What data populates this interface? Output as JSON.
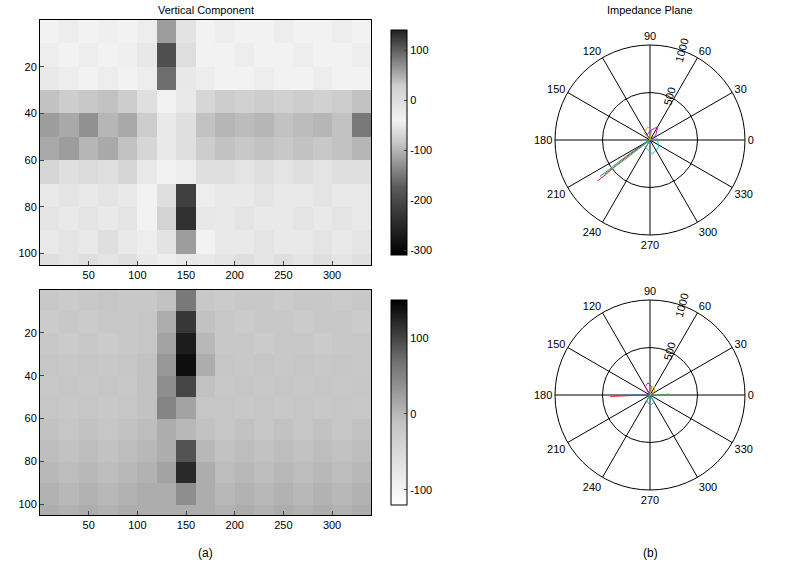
{
  "chart_data": [
    {
      "type": "heatmap",
      "title": "Vertical Component",
      "x": [
        10,
        30,
        50,
        70,
        90,
        110,
        130,
        150,
        170,
        190,
        210,
        230,
        250,
        270,
        290,
        310,
        330
      ],
      "y": [
        5,
        15,
        25,
        35,
        45,
        55,
        65,
        75,
        85,
        95,
        105
      ],
      "z": [
        [
          -40,
          -45,
          -40,
          -35,
          -40,
          -30,
          60,
          -10,
          -40,
          -45,
          -40,
          -40,
          -45,
          -40,
          -40,
          -45,
          -40
        ],
        [
          -45,
          -40,
          -45,
          -40,
          -35,
          -20,
          110,
          0,
          -40,
          -40,
          -45,
          -40,
          -40,
          -45,
          -40,
          -40,
          -45
        ],
        [
          -50,
          -45,
          -40,
          -45,
          -40,
          -30,
          90,
          -20,
          -45,
          -40,
          -40,
          -45,
          -40,
          -40,
          -45,
          -40,
          -40
        ],
        [
          -90,
          -80,
          -85,
          -90,
          -80,
          -60,
          -40,
          -50,
          -70,
          -80,
          -75,
          -80,
          -75,
          -80,
          -75,
          -80,
          -90
        ],
        [
          -120,
          -110,
          -130,
          -100,
          -110,
          -80,
          -50,
          -60,
          -90,
          -100,
          -95,
          -100,
          -90,
          -95,
          -100,
          -90,
          -150
        ],
        [
          -110,
          -120,
          -100,
          -110,
          -90,
          -70,
          -50,
          -60,
          -80,
          -90,
          -85,
          -90,
          -85,
          -90,
          -85,
          -90,
          -100
        ],
        [
          -70,
          -60,
          -65,
          -60,
          -70,
          -50,
          -40,
          -30,
          -60,
          -60,
          -55,
          -60,
          -55,
          -60,
          -55,
          -60,
          -60
        ],
        [
          -50,
          -55,
          -50,
          -55,
          -50,
          -40,
          0,
          120,
          -30,
          -50,
          -50,
          -55,
          -50,
          -50,
          -55,
          -50,
          -50
        ],
        [
          -55,
          -50,
          -55,
          -50,
          -55,
          -40,
          20,
          130,
          -20,
          -50,
          -55,
          -50,
          -50,
          -55,
          -50,
          -55,
          -50
        ],
        [
          -50,
          -55,
          -50,
          -60,
          -50,
          -45,
          -10,
          60,
          -40,
          -50,
          -50,
          -55,
          -50,
          -50,
          -55,
          -50,
          -55
        ],
        [
          -60,
          -55,
          -60,
          -55,
          -60,
          -50,
          -30,
          -20,
          -50,
          -55,
          -60,
          -55,
          -60,
          -55,
          -60,
          -55,
          -60
        ]
      ],
      "xlim": [
        0,
        340
      ],
      "ylim": [
        105,
        0
      ],
      "xticks": [
        50,
        100,
        150,
        200,
        250,
        300
      ],
      "yticks": [
        20,
        40,
        60,
        80,
        100
      ],
      "colorbar_range": [
        -310,
        140
      ],
      "colorbar_ticks": [
        -300,
        -200,
        -100,
        0,
        100
      ]
    },
    {
      "type": "polar",
      "title": "Impedance Plane",
      "rlim": [
        0,
        1000
      ],
      "rticks": [
        500,
        1000
      ],
      "theta_ticks": [
        0,
        30,
        60,
        90,
        120,
        150,
        180,
        210,
        240,
        270,
        300,
        330
      ],
      "series": [
        {
          "color": "#e41a1c",
          "r": [
            0,
            150,
            300,
            450,
            600,
            700
          ],
          "theta": [
            215,
            215,
            216,
            217,
            218,
            218
          ]
        },
        {
          "color": "#377eb8",
          "r": [
            0,
            120,
            250,
            400,
            550,
            650
          ],
          "theta": [
            212,
            213,
            214,
            215,
            216,
            216
          ]
        },
        {
          "color": "#4daf4a",
          "r": [
            0,
            100,
            200,
            350,
            500,
            600
          ],
          "theta": [
            220,
            219,
            218,
            218,
            217,
            217
          ]
        },
        {
          "color": "#c51bc5",
          "r": [
            0,
            80,
            160,
            100,
            60,
            0
          ],
          "theta": [
            30,
            40,
            60,
            90,
            120,
            150
          ]
        },
        {
          "color": "#17becf",
          "r": [
            0,
            90,
            150,
            120,
            80,
            0
          ],
          "theta": [
            200,
            240,
            280,
            320,
            10,
            60
          ]
        },
        {
          "color": "#bcbd22",
          "r": [
            0,
            100,
            140,
            100,
            0
          ],
          "theta": [
            50,
            80,
            100,
            130,
            160
          ]
        }
      ]
    },
    {
      "type": "heatmap",
      "x": [
        10,
        30,
        50,
        70,
        90,
        110,
        130,
        150,
        170,
        190,
        210,
        230,
        250,
        270,
        290,
        310,
        330
      ],
      "y": [
        5,
        15,
        25,
        35,
        45,
        55,
        65,
        75,
        85,
        95,
        105
      ],
      "z": [
        [
          -20,
          -25,
          -20,
          -15,
          -20,
          -20,
          -10,
          60,
          -20,
          -25,
          -20,
          -20,
          -25,
          -20,
          -20,
          -25,
          -20
        ],
        [
          -25,
          -20,
          -25,
          -20,
          -20,
          -15,
          10,
          110,
          -10,
          -20,
          -25,
          -20,
          -20,
          -25,
          -20,
          -20,
          -25
        ],
        [
          -20,
          -25,
          -20,
          -25,
          -20,
          -15,
          20,
          130,
          0,
          -20,
          -20,
          -25,
          -20,
          -20,
          -25,
          -20,
          -20
        ],
        [
          -15,
          -20,
          -15,
          -20,
          -15,
          -10,
          30,
          140,
          10,
          -15,
          -20,
          -15,
          -20,
          -15,
          -20,
          -15,
          -20
        ],
        [
          -20,
          -15,
          -20,
          -15,
          -20,
          -10,
          40,
          100,
          -10,
          -20,
          -15,
          -20,
          -15,
          -20,
          -15,
          -20,
          -15
        ],
        [
          -15,
          -20,
          -15,
          -20,
          -15,
          -10,
          50,
          20,
          -15,
          -15,
          -20,
          -15,
          -20,
          -15,
          -20,
          -15,
          -20
        ],
        [
          -10,
          -15,
          -10,
          -15,
          -10,
          -5,
          10,
          0,
          -10,
          -15,
          -10,
          -15,
          -10,
          -15,
          -10,
          -15,
          -10
        ],
        [
          -5,
          -10,
          -5,
          -10,
          -5,
          0,
          10,
          90,
          0,
          -10,
          -5,
          -10,
          -5,
          -10,
          -5,
          -10,
          -5
        ],
        [
          0,
          -5,
          0,
          -5,
          0,
          5,
          20,
          120,
          10,
          -5,
          0,
          -5,
          0,
          -5,
          0,
          -5,
          0
        ],
        [
          5,
          0,
          5,
          0,
          5,
          10,
          10,
          40,
          10,
          0,
          5,
          0,
          5,
          0,
          5,
          0,
          5
        ],
        [
          10,
          5,
          10,
          5,
          10,
          10,
          10,
          10,
          10,
          5,
          10,
          5,
          10,
          5,
          10,
          5,
          10
        ]
      ],
      "xlim": [
        0,
        340
      ],
      "ylim": [
        105,
        0
      ],
      "xticks": [
        50,
        100,
        150,
        200,
        250,
        300
      ],
      "yticks": [
        20,
        40,
        60,
        80,
        100
      ],
      "colorbar_range": [
        -120,
        150
      ],
      "colorbar_ticks": [
        -100,
        0,
        100
      ]
    },
    {
      "type": "polar",
      "rlim": [
        0,
        1000
      ],
      "rticks": [
        500,
        1000
      ],
      "theta_ticks": [
        0,
        30,
        60,
        90,
        120,
        150,
        180,
        210,
        240,
        270,
        300,
        330
      ],
      "series": [
        {
          "color": "#e41a1c",
          "r": [
            0,
            150,
            300,
            420
          ],
          "theta": [
            180,
            181,
            182,
            182
          ]
        },
        {
          "color": "#377eb8",
          "r": [
            0,
            120,
            250,
            380
          ],
          "theta": [
            178,
            179,
            180,
            181
          ]
        },
        {
          "color": "#4daf4a",
          "r": [
            0,
            80,
            150,
            200
          ],
          "theta": [
            0,
            1,
            2,
            3
          ]
        },
        {
          "color": "#c51bc5",
          "r": [
            0,
            90,
            130,
            100,
            0
          ],
          "theta": [
            60,
            80,
            100,
            120,
            150
          ]
        },
        {
          "color": "#17becf",
          "r": [
            0,
            70,
            110,
            90,
            0
          ],
          "theta": [
            200,
            240,
            270,
            300,
            340
          ]
        },
        {
          "color": "#bcbd22",
          "r": [
            0,
            60,
            100,
            80,
            0
          ],
          "theta": [
            20,
            40,
            60,
            80,
            100
          ]
        }
      ]
    }
  ],
  "panel_labels": [
    "(a)",
    "(b)"
  ]
}
